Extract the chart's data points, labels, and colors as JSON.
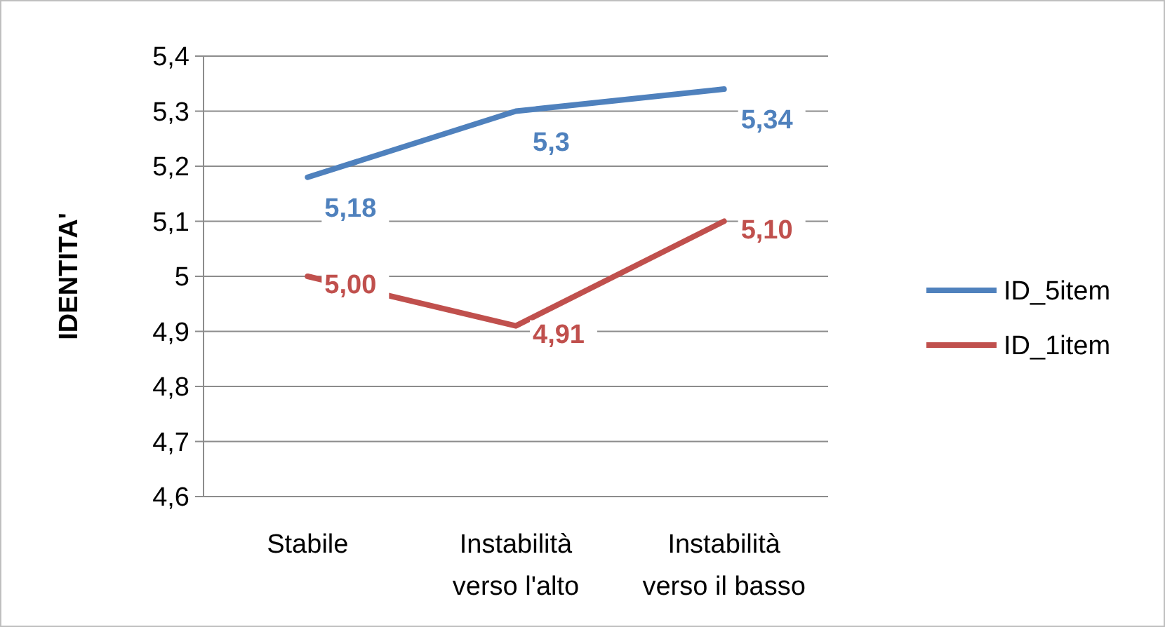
{
  "chart_data": {
    "type": "line",
    "ylabel": "IDENTITA'",
    "categories": [
      "Stabile",
      "Instabilità verso l'alto",
      "Instabilità verso il basso"
    ],
    "series": [
      {
        "name": "ID_5item",
        "color": "#4f81bd",
        "values": [
          5.18,
          5.3,
          5.34
        ],
        "value_labels": [
          "5,18",
          "5,3",
          "5,34"
        ]
      },
      {
        "name": "ID_1item",
        "color": "#c0504d",
        "values": [
          5.0,
          4.91,
          5.1
        ],
        "value_labels": [
          "5,00",
          "4,91",
          "5,10"
        ]
      }
    ],
    "ylim": [
      4.6,
      5.4
    ],
    "yticks": [
      {
        "value": 4.6,
        "label": "4,6"
      },
      {
        "value": 4.7,
        "label": "4,7"
      },
      {
        "value": 4.8,
        "label": "4,8"
      },
      {
        "value": 4.9,
        "label": "4,9"
      },
      {
        "value": 5,
        "label": "5"
      },
      {
        "value": 5.1,
        "label": "5,1"
      },
      {
        "value": 5.2,
        "label": "5,2"
      },
      {
        "value": 5.3,
        "label": "5,3"
      },
      {
        "value": 5.4,
        "label": "5,4"
      }
    ],
    "grid": "y",
    "legend": "right",
    "marker": "none",
    "line_style": "solid"
  }
}
